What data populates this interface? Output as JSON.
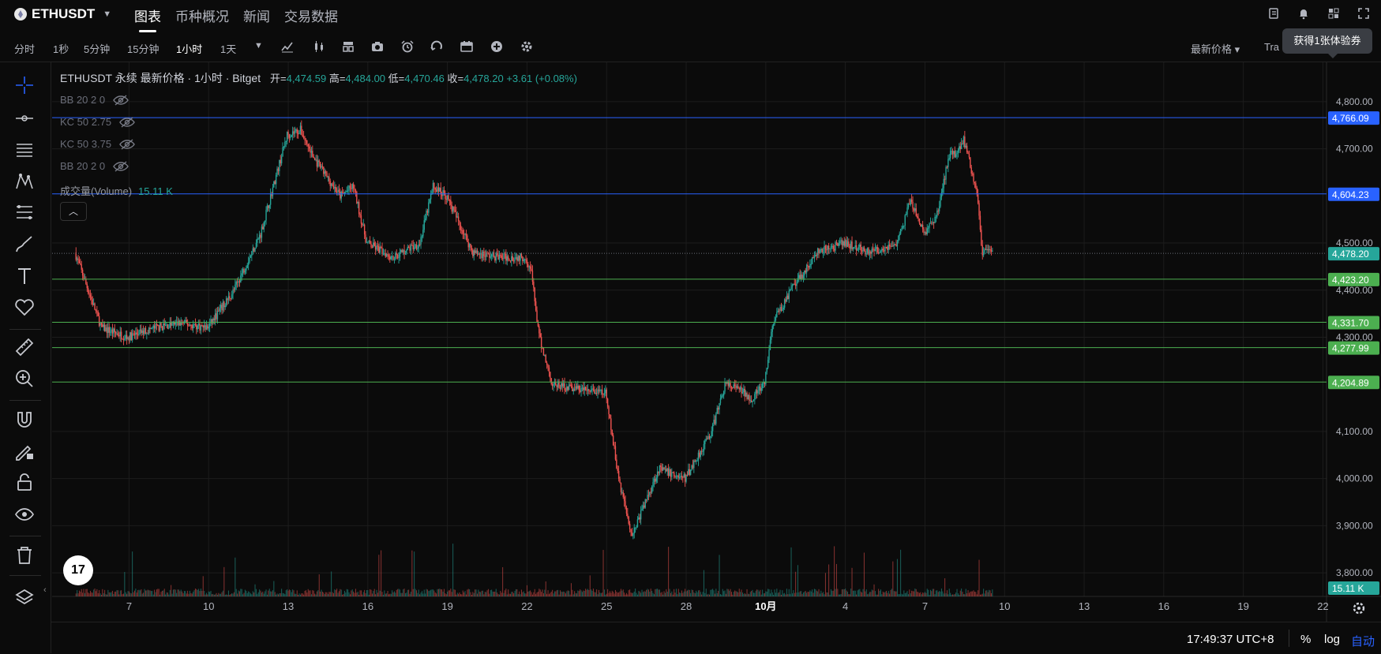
{
  "header": {
    "symbol": "ETHUSDT",
    "tabs": [
      {
        "label": "图表",
        "active": true
      },
      {
        "label": "币种概况",
        "active": false
      },
      {
        "label": "新闻",
        "active": false
      },
      {
        "label": "交易数据",
        "active": false
      }
    ]
  },
  "toolbar": {
    "timeframes": [
      "分时",
      "1秒",
      "5分钟",
      "15分钟",
      "1小时",
      "1天"
    ],
    "active_timeframe": "1小时",
    "price_type": "最新价格 ▾",
    "tra": "Tra",
    "tooltip": "获得1张体验券"
  },
  "legend": {
    "title": "ETHUSDT 永续 最新价格 · 1小时 · Bitget",
    "open_label": "开=",
    "open": "4,474.59",
    "high_label": "高=",
    "high": "4,484.00",
    "low_label": "低=",
    "low": "4,470.46",
    "close_label": "收=",
    "close": "4,478.20",
    "change": "+3.61 (+0.08%)",
    "indicators": [
      "BB 20 2 0",
      "KC 50 2.75",
      "KC 50 3.75",
      "BB 20 2 0"
    ],
    "volume_label": "成交量(Volume)",
    "volume_value": "15.11 K",
    "collapse_icon": "chevron-up-icon"
  },
  "chart_data": {
    "type": "candlestick",
    "symbol": "ETHUSDT",
    "timeframe": "1小时",
    "y_ticks": [
      "4,800.00",
      "4,700.00",
      "4,500.00",
      "4,400.00",
      "4,300.00",
      "4,100.00",
      "4,000.00",
      "3,900.00",
      "3,800.00"
    ],
    "x_ticks": [
      "7",
      "10",
      "13",
      "16",
      "19",
      "22",
      "25",
      "28",
      "10月",
      "4",
      "7",
      "10",
      "13",
      "16",
      "19",
      "22"
    ],
    "price_range": [
      3770,
      4840
    ],
    "price_path_x": [
      5,
      6,
      7,
      8,
      9,
      10,
      11,
      12,
      13,
      13.5,
      14,
      15,
      15.5,
      16,
      17,
      18,
      18.5,
      19,
      20,
      21,
      22,
      22.2,
      22.5,
      23,
      24,
      25,
      25.5,
      26,
      26.5,
      27,
      28,
      29,
      29.5,
      30,
      30.5,
      31,
      31.3,
      31.5,
      32,
      33,
      34,
      35,
      36,
      36.5,
      37,
      37.5,
      38,
      38.2,
      38.5,
      39,
      39.2,
      39.6
    ],
    "price_path_y": [
      4480,
      4320,
      4300,
      4320,
      4330,
      4320,
      4400,
      4520,
      4730,
      4740,
      4680,
      4600,
      4620,
      4500,
      4470,
      4500,
      4620,
      4600,
      4480,
      4470,
      4470,
      4440,
      4300,
      4200,
      4190,
      4180,
      4000,
      3880,
      3950,
      4020,
      4000,
      4100,
      4200,
      4190,
      4170,
      4200,
      4330,
      4350,
      4400,
      4480,
      4500,
      4480,
      4500,
      4590,
      4520,
      4560,
      4700,
      4690,
      4720,
      4610,
      4480,
      4478.2
    ],
    "horizontal_lines": [
      {
        "price": 4766.09,
        "label": "4,766.09",
        "color": "#2962ff"
      },
      {
        "price": 4604.23,
        "label": "4,604.23",
        "color": "#2962ff"
      },
      {
        "price": 4423.2,
        "label": "4,423.20",
        "color": "#4caf50"
      },
      {
        "price": 4331.7,
        "label": "4,331.70",
        "color": "#4caf50"
      },
      {
        "price": 4277.99,
        "label": "4,277.99",
        "color": "#4caf50"
      },
      {
        "price": 4204.89,
        "label": "4,204.89",
        "color": "#4caf50"
      }
    ],
    "last_price": {
      "price": 4478.2,
      "label": "4,478.20",
      "color": "#26a69a"
    },
    "volume_label": {
      "label": "15.11 K",
      "color": "#26a69a"
    },
    "up_color": "#26a69a",
    "down_color": "#ef5350"
  },
  "statusbar": {
    "clock": "17:49:37 UTC+8",
    "percent": "%",
    "log": "log",
    "auto": "自动"
  },
  "logo_text": "17"
}
